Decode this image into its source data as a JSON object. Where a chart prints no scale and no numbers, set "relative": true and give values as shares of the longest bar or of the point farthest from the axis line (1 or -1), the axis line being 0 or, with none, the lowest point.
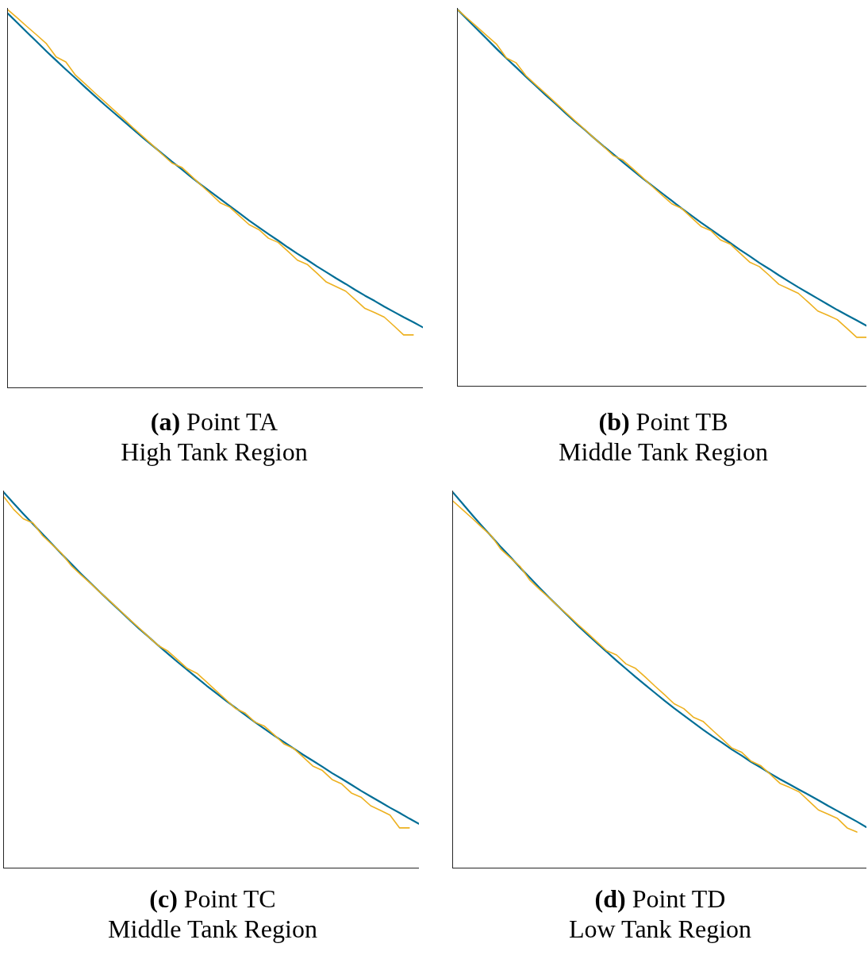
{
  "chart_data": [
    {
      "type": "line",
      "title": "(a) Point TA",
      "subtitle": "High Tank Region",
      "relative": true,
      "categories": [
        null,
        null,
        null,
        null,
        null,
        null,
        null,
        null,
        null,
        null,
        null,
        null,
        null,
        null,
        null,
        null,
        null,
        null,
        null,
        null,
        null,
        null,
        null,
        null,
        null,
        null,
        null,
        null,
        null,
        null,
        null,
        null,
        null,
        null,
        null,
        null,
        null,
        null,
        null,
        null,
        null,
        null,
        null,
        null
      ],
      "series": [
        {
          "color": "#006e96",
          "values": [
            0.99,
            0.965,
            0.94,
            0.915,
            0.89,
            0.866,
            0.842,
            0.819,
            0.795,
            0.772,
            0.749,
            0.727,
            0.705,
            0.683,
            0.661,
            0.64,
            0.619,
            0.598,
            0.578,
            0.557,
            0.537,
            0.518,
            0.499,
            0.48,
            0.461,
            0.442,
            0.424,
            0.406,
            0.389,
            0.371,
            0.354,
            0.338,
            0.321,
            0.305,
            0.289,
            0.274,
            0.258,
            0.243,
            0.229,
            0.214,
            0.2,
            0.186,
            0.173,
            0.159
          ]
        },
        {
          "color": "#edb120",
          "values": [
            1,
            0.978,
            0.955,
            0.933,
            0.91,
            0.875,
            0.862,
            0.827,
            0.804,
            0.78,
            0.757,
            0.734,
            0.711,
            0.687,
            0.664,
            0.641,
            0.617,
            0.594,
            0.583,
            0.56,
            0.536,
            0.513,
            0.489,
            0.477,
            0.454,
            0.431,
            0.418,
            0.395,
            0.384,
            0.361,
            0.337,
            0.326,
            0.303,
            0.279,
            0.267,
            0.255,
            0.232,
            0.209,
            0.198,
            0.186,
            0.163,
            0.139,
            0.139,
            null
          ]
        }
      ]
    },
    {
      "type": "line",
      "title": "(b) Point TB",
      "subtitle": "Middle Tank Region",
      "relative": true,
      "categories": [
        null,
        null,
        null,
        null,
        null,
        null,
        null,
        null,
        null,
        null,
        null,
        null,
        null,
        null,
        null,
        null,
        null,
        null,
        null,
        null,
        null,
        null,
        null,
        null,
        null,
        null,
        null,
        null,
        null,
        null,
        null,
        null,
        null,
        null,
        null,
        null,
        null,
        null,
        null,
        null,
        null,
        null,
        null
      ],
      "series": [
        {
          "color": "#006e96",
          "values": [
            1,
            0.974,
            0.948,
            0.922,
            0.896,
            0.871,
            0.847,
            0.822,
            0.798,
            0.774,
            0.751,
            0.727,
            0.704,
            0.682,
            0.659,
            0.637,
            0.616,
            0.594,
            0.573,
            0.552,
            0.532,
            0.512,
            0.492,
            0.472,
            0.453,
            0.434,
            0.416,
            0.398,
            0.38,
            0.362,
            0.345,
            0.327,
            0.311,
            0.294,
            0.278,
            0.262,
            0.247,
            0.232,
            0.217,
            0.202,
            0.188,
            0.174,
            0.16
          ]
        },
        {
          "color": "#edb120",
          "values": [
            1,
            0.977,
            0.954,
            0.931,
            0.908,
            0.872,
            0.859,
            0.825,
            0.801,
            0.778,
            0.754,
            0.73,
            0.706,
            0.683,
            0.659,
            0.636,
            0.612,
            0.6,
            0.577,
            0.554,
            0.53,
            0.507,
            0.484,
            0.472,
            0.448,
            0.424,
            0.413,
            0.388,
            0.377,
            0.353,
            0.329,
            0.317,
            0.294,
            0.27,
            0.258,
            0.246,
            0.223,
            0.199,
            0.188,
            0.176,
            0.153,
            0.129,
            0.129
          ]
        }
      ]
    },
    {
      "type": "line",
      "title": "(c) Point TC",
      "subtitle": "Middle Tank Region",
      "relative": true,
      "categories": [
        null,
        null,
        null,
        null,
        null,
        null,
        null,
        null,
        null,
        null,
        null,
        null,
        null,
        null,
        null,
        null,
        null,
        null,
        null,
        null,
        null,
        null,
        null,
        null,
        null,
        null,
        null,
        null,
        null,
        null,
        null,
        null,
        null,
        null,
        null,
        null,
        null,
        null,
        null,
        null,
        null,
        null,
        null,
        null
      ],
      "series": [
        {
          "color": "#006e96",
          "values": [
            1,
            0.971,
            0.943,
            0.916,
            0.889,
            0.862,
            0.835,
            0.809,
            0.783,
            0.758,
            0.733,
            0.709,
            0.685,
            0.661,
            0.637,
            0.615,
            0.592,
            0.57,
            0.548,
            0.527,
            0.506,
            0.485,
            0.465,
            0.445,
            0.426,
            0.407,
            0.388,
            0.37,
            0.352,
            0.335,
            0.318,
            0.301,
            0.285,
            0.269,
            0.252,
            0.237,
            0.221,
            0.205,
            0.19,
            0.175,
            0.16,
            0.146,
            0.131,
            0.117
          ]
        },
        {
          "color": "#edb120",
          "values": [
            0.988,
            0.955,
            0.93,
            0.919,
            0.885,
            0.861,
            0.837,
            0.804,
            0.78,
            0.757,
            0.733,
            0.71,
            0.686,
            0.662,
            0.639,
            0.615,
            0.592,
            0.577,
            0.554,
            0.531,
            0.518,
            0.495,
            0.471,
            0.448,
            0.424,
            0.412,
            0.388,
            0.377,
            0.354,
            0.33,
            0.318,
            0.295,
            0.271,
            0.259,
            0.235,
            0.223,
            0.199,
            0.188,
            0.165,
            0.153,
            0.14,
            0.106,
            0.106,
            null
          ]
        }
      ]
    },
    {
      "type": "line",
      "title": "(d) Point TD",
      "subtitle": "Low Tank Region",
      "relative": true,
      "categories": [
        null,
        null,
        null,
        null,
        null,
        null,
        null,
        null,
        null,
        null,
        null,
        null,
        null,
        null,
        null,
        null,
        null,
        null,
        null,
        null,
        null,
        null,
        null,
        null,
        null,
        null,
        null,
        null,
        null,
        null,
        null,
        null,
        null,
        null,
        null,
        null,
        null,
        null,
        null,
        null,
        null,
        null,
        null,
        null
      ],
      "series": [
        {
          "color": "#006e96",
          "values": [
            1,
            0.97,
            0.94,
            0.911,
            0.883,
            0.854,
            0.827,
            0.799,
            0.773,
            0.746,
            0.72,
            0.695,
            0.67,
            0.645,
            0.621,
            0.598,
            0.575,
            0.552,
            0.53,
            0.508,
            0.487,
            0.466,
            0.445,
            0.425,
            0.406,
            0.387,
            0.368,
            0.35,
            0.333,
            0.315,
            0.299,
            0.282,
            0.267,
            0.251,
            0.236,
            0.222,
            0.208,
            0.194,
            0.18,
            0.165,
            0.151,
            0.137,
            0.123,
            0.108
          ]
        },
        {
          "color": "#edb120",
          "values": [
            0.977,
            0.954,
            0.931,
            0.907,
            0.884,
            0.848,
            0.825,
            0.802,
            0.766,
            0.742,
            0.719,
            0.695,
            0.672,
            0.648,
            0.625,
            0.601,
            0.578,
            0.567,
            0.543,
            0.531,
            0.508,
            0.484,
            0.461,
            0.437,
            0.424,
            0.401,
            0.39,
            0.366,
            0.343,
            0.319,
            0.308,
            0.284,
            0.272,
            0.249,
            0.225,
            0.214,
            0.202,
            0.178,
            0.154,
            0.143,
            0.131,
            0.106,
            0.095,
            null
          ]
        }
      ]
    }
  ]
}
